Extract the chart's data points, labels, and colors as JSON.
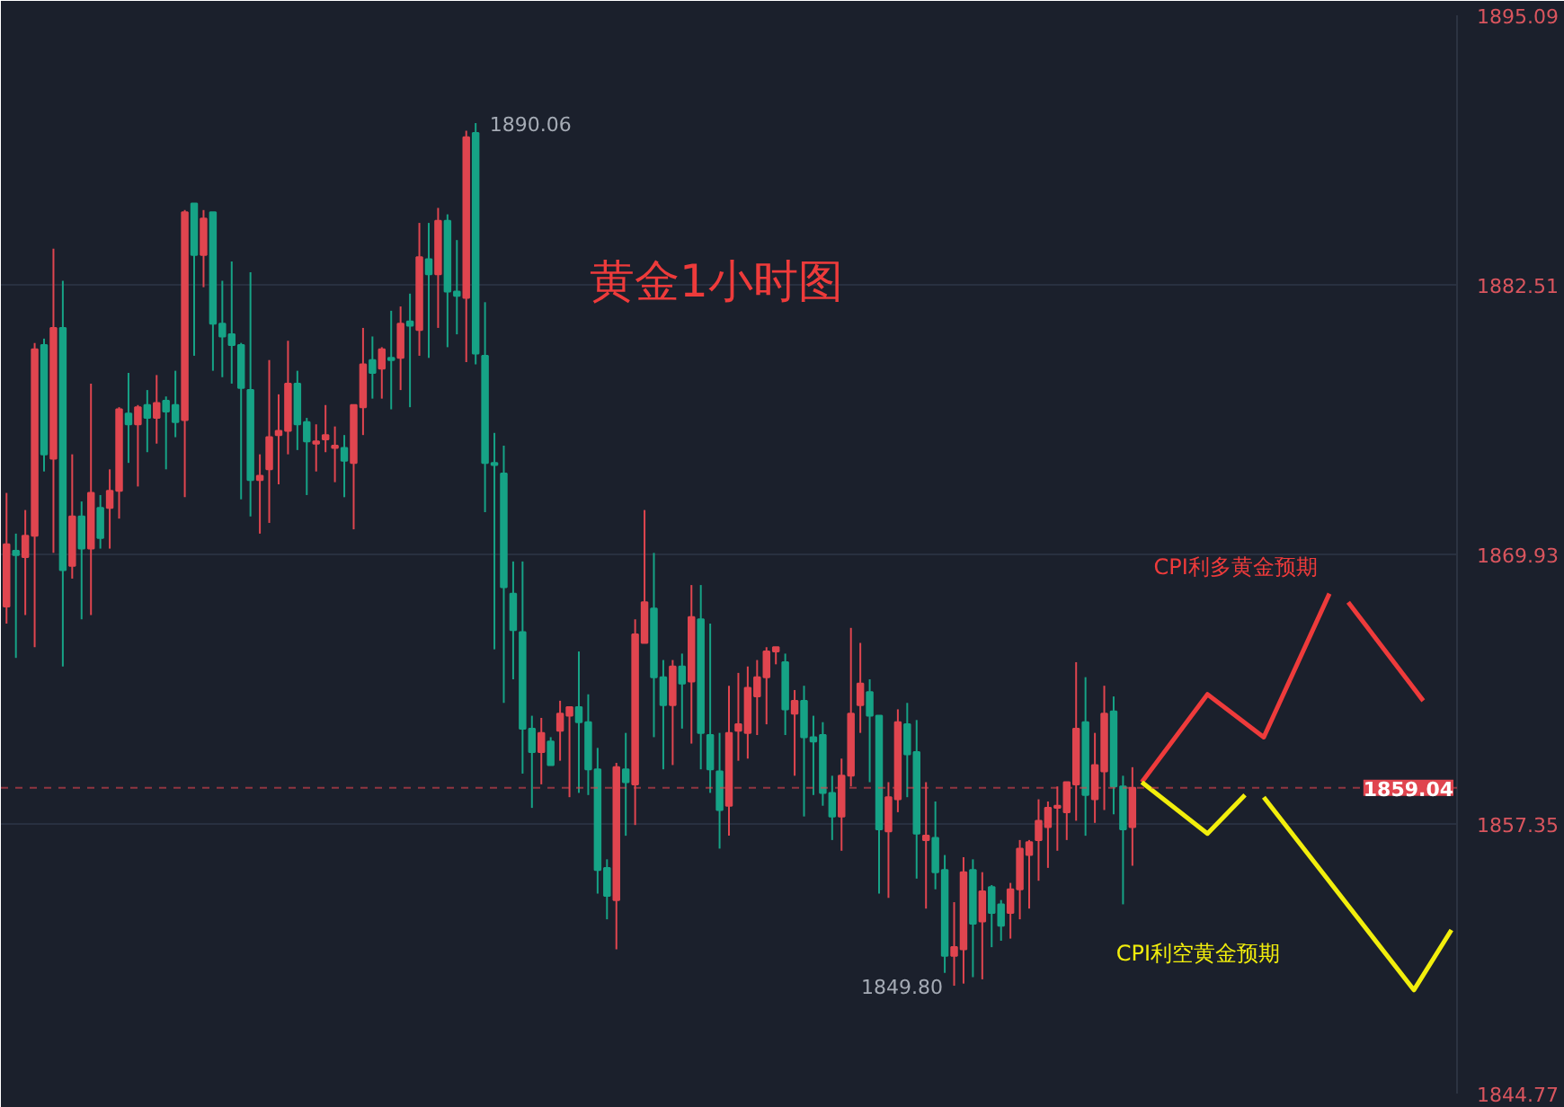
{
  "chart_data": {
    "type": "candlestick",
    "title": "黄金1小时图",
    "categories": [
      null,
      null,
      null,
      null,
      null,
      null,
      null,
      null,
      null,
      null,
      null,
      null,
      null,
      null,
      null,
      null,
      null,
      null,
      null,
      null,
      null,
      null,
      null,
      null,
      null,
      null,
      null,
      null,
      null,
      null,
      null,
      null,
      null,
      null,
      null,
      null,
      null,
      null,
      null,
      null,
      null,
      null,
      null,
      null,
      null,
      null,
      null,
      null,
      null,
      null,
      null,
      null,
      null,
      null,
      null,
      null,
      null,
      null,
      null,
      null,
      null,
      null,
      null,
      null,
      null,
      null,
      null,
      null,
      null,
      null,
      null,
      null,
      null,
      null,
      null,
      null,
      null,
      null,
      null,
      null,
      null,
      null,
      null,
      null,
      null,
      null,
      null,
      null,
      null,
      null,
      null,
      null,
      null,
      null,
      null,
      null,
      null,
      null,
      null,
      null,
      null,
      null,
      null,
      null,
      null,
      null,
      null,
      null,
      null,
      null,
      null,
      null,
      null,
      null,
      null,
      null,
      null,
      null,
      null,
      null,
      null,
      null,
      null,
      null,
      null,
      null,
      null,
      null,
      null,
      null,
      null,
      null,
      null,
      null,
      null,
      null,
      null,
      null,
      null,
      null,
      null,
      null,
      null,
      null,
      null,
      null,
      null,
      null,
      null,
      null,
      null,
      null,
      null,
      null,
      null
    ],
    "ohlc": [
      [
        1867.5,
        1872.8,
        1866.7,
        1870.4
      ],
      [
        1870.1,
        1870.9,
        1865.1,
        1869.9
      ],
      [
        1869.8,
        1872.0,
        1867.1,
        1870.8
      ],
      [
        1870.8,
        1879.8,
        1865.6,
        1879.5
      ],
      [
        1879.7,
        1880.0,
        1873.8,
        1874.6
      ],
      [
        1874.4,
        1884.2,
        1870.0,
        1880.5
      ],
      [
        1880.5,
        1882.7,
        1864.7,
        1869.2
      ],
      [
        1869.4,
        1874.6,
        1868.8,
        1871.7
      ],
      [
        1871.7,
        1872.4,
        1866.9,
        1870.2
      ],
      [
        1870.2,
        1877.9,
        1867.1,
        1872.8
      ],
      [
        1872.1,
        1872.7,
        1870.2,
        1870.7
      ],
      [
        1872.1,
        1873.9,
        1870.2,
        1872.9
      ],
      [
        1872.9,
        1876.8,
        1871.6,
        1876.7
      ],
      [
        1876.5,
        1878.4,
        1874.2,
        1876.0
      ],
      [
        1876.0,
        1876.9,
        1873.1,
        1876.8
      ],
      [
        1876.9,
        1877.6,
        1874.7,
        1876.3
      ],
      [
        1876.3,
        1878.3,
        1875.1,
        1877.0
      ],
      [
        1877.1,
        1877.3,
        1873.9,
        1876.6
      ],
      [
        1876.9,
        1878.5,
        1875.4,
        1876.1
      ],
      [
        1876.2,
        1886.0,
        1872.6,
        1885.9
      ],
      [
        1886.3,
        1886.3,
        1879.2,
        1883.9
      ],
      [
        1883.9,
        1886.0,
        1882.4,
        1885.6
      ],
      [
        1885.9,
        1885.9,
        1878.5,
        1880.7
      ],
      [
        1880.7,
        1882.7,
        1878.2,
        1880.1
      ],
      [
        1880.2,
        1883.6,
        1877.9,
        1879.7
      ],
      [
        1879.7,
        1879.8,
        1872.5,
        1877.7
      ],
      [
        1877.6,
        1883.1,
        1871.7,
        1873.4
      ],
      [
        1873.4,
        1874.6,
        1870.9,
        1873.6
      ],
      [
        1873.9,
        1879.0,
        1871.4,
        1875.4
      ],
      [
        1875.5,
        1877.4,
        1873.2,
        1875.7
      ],
      [
        1875.7,
        1879.9,
        1874.6,
        1877.9
      ],
      [
        1877.9,
        1878.5,
        1874.8,
        1876.0
      ],
      [
        1876.1,
        1876.3,
        1872.7,
        1875.2
      ],
      [
        1875.1,
        1876.0,
        1873.8,
        1875.2
      ],
      [
        1875.3,
        1876.9,
        1874.7,
        1875.5
      ],
      [
        1874.9,
        1875.9,
        1873.3,
        1875.0
      ],
      [
        1874.9,
        1875.5,
        1872.6,
        1874.3
      ],
      [
        1874.2,
        1876.9,
        1871.1,
        1876.9
      ],
      [
        1876.8,
        1880.5,
        1875.5,
        1878.8
      ],
      [
        1879.0,
        1880.1,
        1877.2,
        1878.4
      ],
      [
        1878.6,
        1879.6,
        1877.2,
        1879.5
      ],
      [
        1879.1,
        1881.3,
        1876.7,
        1879.0
      ],
      [
        1879.1,
        1881.5,
        1877.6,
        1880.7
      ],
      [
        1880.8,
        1882.1,
        1876.8,
        1880.6
      ],
      [
        1880.4,
        1885.4,
        1879.2,
        1883.8
      ],
      [
        1883.7,
        1885.4,
        1879.1,
        1883.0
      ],
      [
        1883.0,
        1886.1,
        1880.5,
        1885.5
      ],
      [
        1885.5,
        1885.8,
        1879.6,
        1882.2
      ],
      [
        1882.2,
        1884.6,
        1880.2,
        1882.0
      ],
      [
        1881.9,
        1889.7,
        1878.9,
        1889.4
      ],
      [
        1889.6,
        1890.06,
        1878.8,
        1879.3
      ],
      [
        1879.2,
        1881.7,
        1871.9,
        1874.2
      ],
      [
        1874.2,
        1875.6,
        1865.5,
        1874.1
      ],
      [
        1873.7,
        1875.0,
        1863.0,
        1868.4
      ],
      [
        1868.1,
        1869.6,
        1864.1,
        1866.4
      ],
      [
        1866.3,
        1869.6,
        1859.7,
        1861.8
      ],
      [
        1861.8,
        1862.4,
        1858.1,
        1860.7
      ],
      [
        1860.7,
        1862.3,
        1859.2,
        1861.6
      ],
      [
        1861.2,
        1861.4,
        1860.1,
        1860.1
      ],
      [
        1861.7,
        1863.1,
        1860.3,
        1862.5
      ],
      [
        1862.4,
        1862.8,
        1858.6,
        1862.8
      ],
      [
        1862.8,
        1865.4,
        1858.8,
        1862.1
      ],
      [
        1862.1,
        1863.4,
        1858.7,
        1859.9
      ],
      [
        1859.9,
        1860.9,
        1854.1,
        1855.2
      ],
      [
        1855.3,
        1855.7,
        1852.9,
        1854.0
      ],
      [
        1853.8,
        1860.2,
        1851.5,
        1860.0
      ],
      [
        1859.9,
        1861.6,
        1856.8,
        1859.3
      ],
      [
        1859.2,
        1866.9,
        1857.3,
        1866.2
      ],
      [
        1865.8,
        1872.0,
        1865.8,
        1867.7
      ],
      [
        1867.4,
        1870.0,
        1861.4,
        1864.2
      ],
      [
        1864.2,
        1865.0,
        1859.9,
        1862.9
      ],
      [
        1862.9,
        1865.0,
        1860.1,
        1864.7
      ],
      [
        1864.7,
        1865.3,
        1861.8,
        1863.9
      ],
      [
        1864.0,
        1868.5,
        1861.1,
        1867.0
      ],
      [
        1866.9,
        1868.5,
        1859.9,
        1861.6
      ],
      [
        1861.5,
        1866.7,
        1858.8,
        1859.9
      ],
      [
        1859.8,
        1861.6,
        1856.2,
        1858.0
      ],
      [
        1858.2,
        1863.8,
        1856.8,
        1861.6
      ],
      [
        1861.7,
        1864.4,
        1860.3,
        1862.0
      ],
      [
        1861.6,
        1864.7,
        1860.4,
        1863.7
      ],
      [
        1863.3,
        1865.0,
        1861.5,
        1864.2
      ],
      [
        1864.2,
        1865.6,
        1862.0,
        1865.4
      ],
      [
        1865.4,
        1865.6,
        1864.8,
        1865.6
      ],
      [
        1864.9,
        1865.3,
        1861.5,
        1862.7
      ],
      [
        1862.5,
        1863.6,
        1859.6,
        1863.1
      ],
      [
        1863.1,
        1863.8,
        1857.7,
        1861.4
      ],
      [
        1861.4,
        1862.4,
        1858.7,
        1861.2
      ],
      [
        1861.5,
        1862.1,
        1858.2,
        1858.8
      ],
      [
        1858.8,
        1859.6,
        1856.6,
        1857.7
      ],
      [
        1857.7,
        1860.4,
        1856.1,
        1859.6
      ],
      [
        1859.6,
        1866.5,
        1859.1,
        1862.5
      ],
      [
        1862.9,
        1865.8,
        1861.6,
        1863.9
      ],
      [
        1863.5,
        1864.1,
        1859.3,
        1862.4
      ],
      [
        1862.4,
        1862.4,
        1854.1,
        1857.1
      ],
      [
        1857.0,
        1859.3,
        1853.9,
        1858.6
      ],
      [
        1858.5,
        1862.7,
        1857.9,
        1862.1
      ],
      [
        1862.0,
        1863.0,
        1858.6,
        1860.6
      ],
      [
        1860.7,
        1862.2,
        1854.8,
        1856.9
      ],
      [
        1856.6,
        1859.3,
        1853.4,
        1856.8
      ],
      [
        1856.7,
        1858.4,
        1854.3,
        1855.1
      ],
      [
        1855.2,
        1855.9,
        1850.4,
        1851.2
      ],
      [
        1851.2,
        1853.7,
        1849.8,
        1851.6
      ],
      [
        1851.5,
        1855.8,
        1849.9,
        1855.1
      ],
      [
        1855.2,
        1855.7,
        1850.2,
        1852.7
      ],
      [
        1852.8,
        1855.1,
        1850.1,
        1854.2
      ],
      [
        1854.4,
        1854.5,
        1851.6,
        1853.2
      ],
      [
        1853.6,
        1853.8,
        1851.9,
        1852.6
      ],
      [
        1853.2,
        1854.6,
        1852.0,
        1854.3
      ],
      [
        1854.3,
        1856.6,
        1852.9,
        1856.2
      ],
      [
        1855.9,
        1856.6,
        1853.4,
        1856.5
      ],
      [
        1856.6,
        1858.5,
        1854.7,
        1857.5
      ],
      [
        1857.2,
        1858.4,
        1855.3,
        1858.1
      ],
      [
        1858.1,
        1859.1,
        1856.1,
        1858.2
      ],
      [
        1857.9,
        1859.3,
        1856.6,
        1859.3
      ],
      [
        1859.2,
        1864.9,
        1857.5,
        1861.8
      ],
      [
        1862.1,
        1864.2,
        1856.8,
        1858.7
      ],
      [
        1858.5,
        1861.6,
        1857.4,
        1860.1
      ],
      [
        1859.8,
        1863.8,
        1858.0,
        1862.5
      ],
      [
        1862.6,
        1863.3,
        1857.8,
        1859.1
      ],
      [
        1859.1,
        1859.6,
        1853.6,
        1857.1
      ],
      [
        1857.2,
        1860.0,
        1855.4,
        1859.04
      ],
      null,
      null,
      null,
      null,
      null,
      null,
      null,
      null,
      null,
      null,
      null,
      null,
      null,
      null,
      null,
      null,
      null,
      null,
      null,
      null,
      null,
      null,
      null,
      null,
      null,
      null,
      null,
      null,
      null,
      null,
      null,
      null,
      null,
      null
    ],
    "colors": [
      "#e0454f",
      "#16a386",
      "#e0454f",
      "#e0454f",
      "#16a386",
      "#e0454f",
      "#16a386",
      "#e0454f",
      "#16a386",
      "#e0454f",
      "#16a386",
      "#e0454f",
      "#e0454f",
      "#16a386",
      "#e0454f",
      "#16a386",
      "#e0454f",
      "#16a386",
      "#16a386",
      "#e0454f",
      "#16a386",
      "#e0454f",
      "#16a386",
      "#16a386",
      "#16a386",
      "#16a386",
      "#16a386",
      "#e0454f",
      "#e0454f",
      "#e0454f",
      "#e0454f",
      "#16a386",
      "#16a386",
      "#e0454f",
      "#e0454f",
      "#e0454f",
      "#16a386",
      "#e0454f",
      "#e0454f",
      "#16a386",
      "#e0454f",
      "#16a386",
      "#e0454f",
      "#16a386",
      "#e0454f",
      "#16a386",
      "#e0454f",
      "#16a386",
      "#16a386",
      "#e0454f",
      "#16a386",
      "#16a386",
      "#16a386",
      "#16a386",
      "#16a386",
      "#16a386",
      "#16a386",
      "#e0454f",
      "#16a386",
      "#e0454f",
      "#e0454f",
      "#16a386",
      "#16a386",
      "#16a386",
      "#16a386",
      "#e0454f",
      "#16a386",
      "#e0454f",
      "#e0454f",
      "#16a386",
      "#16a386",
      "#e0454f",
      "#16a386",
      "#e0454f",
      "#16a386",
      "#16a386",
      "#16a386",
      "#e0454f",
      "#e0454f",
      "#e0454f",
      "#e0454f",
      "#e0454f",
      "#e0454f",
      "#16a386",
      "#e0454f",
      "#16a386",
      "#16a386",
      "#16a386",
      "#16a386",
      "#e0454f",
      "#e0454f",
      "#e0454f",
      "#16a386",
      "#16a386",
      "#e0454f",
      "#e0454f",
      "#16a386",
      "#16a386",
      "#e0454f",
      "#16a386",
      "#16a386",
      "#e0454f",
      "#e0454f",
      "#16a386",
      "#e0454f",
      "#16a386",
      "#16a386",
      "#e0454f",
      "#e0454f",
      "#e0454f",
      "#e0454f",
      "#e0454f",
      "#e0454f",
      "#e0454f",
      "#e0454f",
      "#16a386",
      "#e0454f",
      "#e0454f",
      "#16a386",
      "#16a386",
      "#e0454f",
      null,
      null,
      null,
      null,
      null,
      null,
      null,
      null,
      null,
      null,
      null,
      null,
      null,
      null,
      null,
      null,
      null,
      null,
      null,
      null,
      null,
      null,
      null,
      null,
      null,
      null,
      null,
      null,
      null,
      null,
      null,
      null,
      null,
      null
    ],
    "series": [
      {
        "type": "line",
        "name": "CPI利多黄金预期",
        "color": "#ee3b3b",
        "values": [
          null,
          null,
          null,
          null,
          null,
          null,
          null,
          null,
          null,
          null,
          null,
          null,
          null,
          null,
          null,
          null,
          null,
          null,
          null,
          null,
          null,
          null,
          null,
          null,
          null,
          null,
          null,
          null,
          null,
          null,
          null,
          null,
          null,
          null,
          null,
          null,
          null,
          null,
          null,
          null,
          null,
          null,
          null,
          null,
          null,
          null,
          null,
          null,
          null,
          null,
          null,
          null,
          null,
          null,
          null,
          null,
          null,
          null,
          null,
          null,
          null,
          null,
          null,
          null,
          null,
          null,
          null,
          null,
          null,
          null,
          null,
          null,
          null,
          null,
          null,
          null,
          null,
          null,
          null,
          null,
          null,
          null,
          null,
          null,
          null,
          null,
          null,
          null,
          null,
          null,
          null,
          null,
          null,
          null,
          null,
          null,
          null,
          null,
          null,
          null,
          null,
          null,
          null,
          null,
          null,
          null,
          null,
          null,
          null,
          null,
          null,
          null,
          null,
          null,
          null,
          null,
          null,
          null,
          null,
          null,
          null,
          1859.3,
          null,
          null,
          null,
          null,
          null,
          null,
          1863.4,
          null,
          null,
          null,
          null,
          null,
          1861.4,
          null,
          null,
          null,
          null,
          null,
          null,
          1868.1,
          null,
          null,
          null,
          null,
          null,
          null,
          null,
          null,
          null,
          null,
          null,
          null,
          null
        ]
      },
      {
        "type": "line",
        "color": "#ee3b3b",
        "values": [
          null,
          null,
          null,
          null,
          null,
          null,
          null,
          null,
          null,
          null,
          null,
          null,
          null,
          null,
          null,
          null,
          null,
          null,
          null,
          null,
          null,
          null,
          null,
          null,
          null,
          null,
          null,
          null,
          null,
          null,
          null,
          null,
          null,
          null,
          null,
          null,
          null,
          null,
          null,
          null,
          null,
          null,
          null,
          null,
          null,
          null,
          null,
          null,
          null,
          null,
          null,
          null,
          null,
          null,
          null,
          null,
          null,
          null,
          null,
          null,
          null,
          null,
          null,
          null,
          null,
          null,
          null,
          null,
          null,
          null,
          null,
          null,
          null,
          null,
          null,
          null,
          null,
          null,
          null,
          null,
          null,
          null,
          null,
          null,
          null,
          null,
          null,
          null,
          null,
          null,
          null,
          null,
          null,
          null,
          null,
          null,
          null,
          null,
          null,
          null,
          null,
          null,
          null,
          null,
          null,
          null,
          null,
          null,
          null,
          null,
          null,
          null,
          null,
          null,
          null,
          null,
          null,
          null,
          null,
          null,
          null,
          null,
          null,
          null,
          null,
          null,
          null,
          null,
          null,
          null,
          null,
          null,
          null,
          null,
          null,
          null,
          null,
          null,
          null,
          null,
          null,
          null,
          null,
          1867.7,
          null,
          null,
          null,
          null,
          null,
          null,
          null,
          1863.1,
          null,
          null,
          null
        ]
      },
      {
        "type": "line",
        "name": "CPI利空黄金预期",
        "color": "#f2ee0c",
        "values": [
          null,
          null,
          null,
          null,
          null,
          null,
          null,
          null,
          null,
          null,
          null,
          null,
          null,
          null,
          null,
          null,
          null,
          null,
          null,
          null,
          null,
          null,
          null,
          null,
          null,
          null,
          null,
          null,
          null,
          null,
          null,
          null,
          null,
          null,
          null,
          null,
          null,
          null,
          null,
          null,
          null,
          null,
          null,
          null,
          null,
          null,
          null,
          null,
          null,
          null,
          null,
          null,
          null,
          null,
          null,
          null,
          null,
          null,
          null,
          null,
          null,
          null,
          null,
          null,
          null,
          null,
          null,
          null,
          null,
          null,
          null,
          null,
          null,
          null,
          null,
          null,
          null,
          null,
          null,
          null,
          null,
          null,
          null,
          null,
          null,
          null,
          null,
          null,
          null,
          null,
          null,
          null,
          null,
          null,
          null,
          null,
          null,
          null,
          null,
          null,
          null,
          null,
          null,
          null,
          null,
          null,
          null,
          null,
          null,
          null,
          null,
          null,
          null,
          null,
          null,
          null,
          null,
          null,
          null,
          null,
          null,
          1859.3,
          null,
          null,
          null,
          null,
          null,
          null,
          1856.9,
          null,
          null,
          null,
          1858.7,
          null,
          null,
          null,
          null,
          null,
          null,
          null,
          null,
          null,
          null,
          null,
          null,
          null,
          null,
          null,
          null,
          null,
          null,
          null,
          null,
          null,
          null
        ]
      },
      {
        "type": "line",
        "color": "#f2ee0c",
        "values": [
          null,
          null,
          null,
          null,
          null,
          null,
          null,
          null,
          null,
          null,
          null,
          null,
          null,
          null,
          null,
          null,
          null,
          null,
          null,
          null,
          null,
          null,
          null,
          null,
          null,
          null,
          null,
          null,
          null,
          null,
          null,
          null,
          null,
          null,
          null,
          null,
          null,
          null,
          null,
          null,
          null,
          null,
          null,
          null,
          null,
          null,
          null,
          null,
          null,
          null,
          null,
          null,
          null,
          null,
          null,
          null,
          null,
          null,
          null,
          null,
          null,
          null,
          null,
          null,
          null,
          null,
          null,
          null,
          null,
          null,
          null,
          null,
          null,
          null,
          null,
          null,
          null,
          null,
          null,
          null,
          null,
          null,
          null,
          null,
          null,
          null,
          null,
          null,
          null,
          null,
          null,
          null,
          null,
          null,
          null,
          null,
          null,
          null,
          null,
          null,
          null,
          null,
          null,
          null,
          null,
          null,
          null,
          null,
          null,
          null,
          null,
          null,
          null,
          null,
          null,
          null,
          null,
          null,
          null,
          null,
          null,
          null,
          null,
          null,
          null,
          null,
          null,
          null,
          null,
          null,
          null,
          null,
          null,
          null,
          1858.6,
          null,
          null,
          null,
          null,
          null,
          null,
          null,
          null,
          null,
          null,
          null,
          null,
          null,
          null,
          null,
          1849.6,
          null,
          null,
          null,
          1852.4
        ]
      }
    ],
    "ylim": [
      1844.77,
      1895.09
    ],
    "yticks": [
      1844.77,
      1857.35,
      1869.93,
      1882.51,
      1895.09
    ],
    "grid": "y",
    "ref_lines": [
      {
        "axis": "y",
        "value": 1859.04,
        "label": "1859.04",
        "color": "#e0454f",
        "line_style": "dashed"
      }
    ],
    "annotations": [
      "1890.06",
      "1849.80"
    ]
  }
}
